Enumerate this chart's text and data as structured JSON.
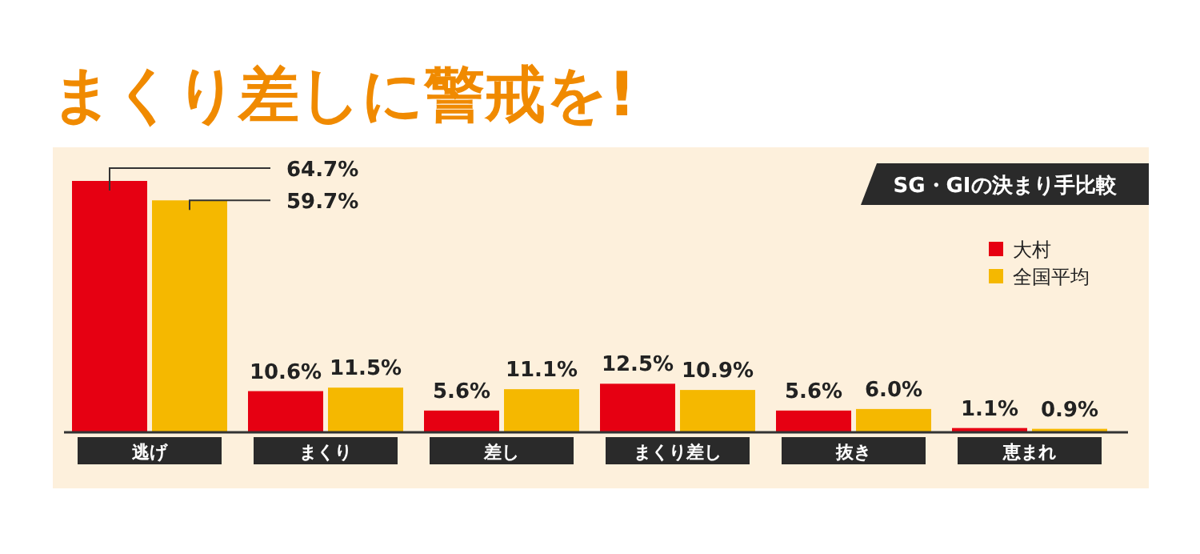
{
  "chart_data": {
    "type": "bar",
    "title": "まくり差しに警戒を!",
    "subtitle": "SG・GIの決まり手比較",
    "categories": [
      "逃げ",
      "まくり",
      "差し",
      "まくり差し",
      "抜き",
      "恵まれ"
    ],
    "series": [
      {
        "name": "大村",
        "color": "#e60012",
        "values": [
          64.7,
          10.6,
          5.6,
          12.5,
          5.6,
          1.1
        ],
        "value_labels": [
          "64.7%",
          "10.6%",
          "5.6%",
          "12.5%",
          "5.6%",
          "1.1%"
        ]
      },
      {
        "name": "全国平均",
        "color": "#f5b800",
        "values": [
          59.7,
          11.5,
          11.1,
          10.9,
          6.0,
          0.9
        ],
        "value_labels": [
          "59.7%",
          "11.5%",
          "11.1%",
          "10.9%",
          "6.0%",
          "0.9%"
        ]
      }
    ],
    "legend": "top right"
  }
}
